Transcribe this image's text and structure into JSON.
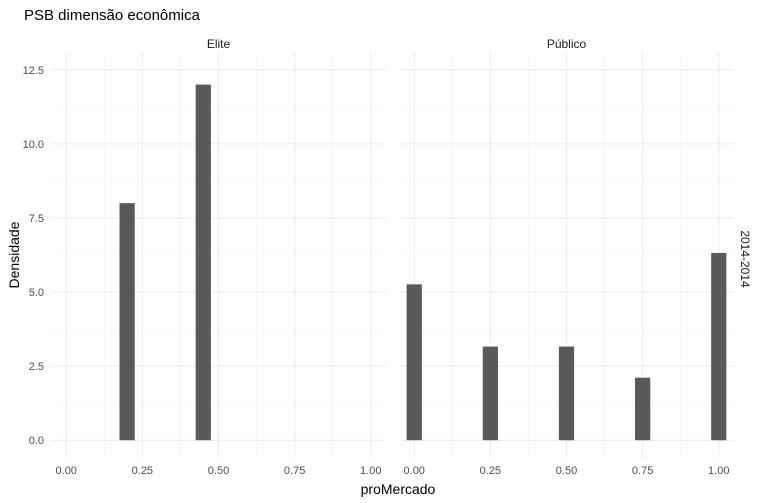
{
  "chart_data": {
    "type": "bar",
    "title": "PSB dimensão econômica",
    "xlabel": "proMercado",
    "ylabel": "Densidade",
    "row_strip": "2014-2014",
    "grid": true,
    "xlim": [
      -0.05,
      1.05
    ],
    "ylim": [
      -0.6,
      13.1
    ],
    "x_ticks": [
      0,
      0.25,
      0.5,
      0.75,
      1
    ],
    "x_tick_labels": [
      "0.00",
      "0.25",
      "0.50",
      "0.75",
      "1.00"
    ],
    "y_ticks": [
      0,
      2.5,
      5,
      7.5,
      10,
      12.5
    ],
    "y_tick_labels": [
      "0.0",
      "2.5",
      "5.0",
      "7.5",
      "10.0",
      "12.5"
    ],
    "bar_width": 0.05,
    "color": "#595959",
    "panels": [
      {
        "name": "Elite",
        "bars": [
          {
            "x": 0.2,
            "value": 8.0
          },
          {
            "x": 0.45,
            "value": 12.0
          }
        ]
      },
      {
        "name": "Público",
        "bars": [
          {
            "x": 0.0,
            "value": 5.26
          },
          {
            "x": 0.25,
            "value": 3.16
          },
          {
            "x": 0.5,
            "value": 3.16
          },
          {
            "x": 0.75,
            "value": 2.11
          },
          {
            "x": 1.0,
            "value": 6.32
          }
        ]
      }
    ]
  }
}
